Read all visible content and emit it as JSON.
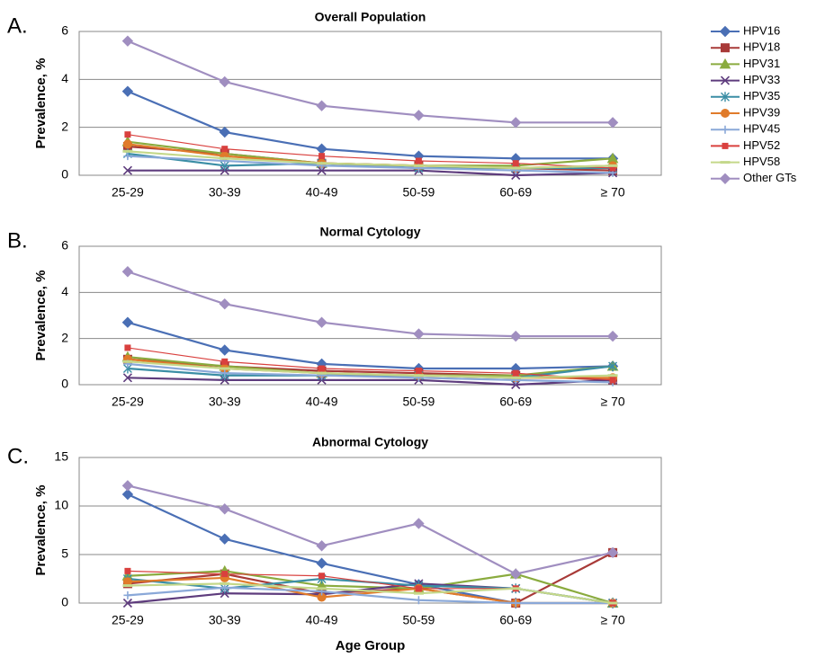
{
  "chart_data": [
    {
      "type": "line",
      "label": "A.",
      "title": "Overall Population",
      "ylabel": "Prevalence, %",
      "categories": [
        "25-29",
        "30-39",
        "40-49",
        "50-59",
        "60-69",
        "≥ 70"
      ],
      "ylim": [
        0,
        6
      ],
      "yticks": [
        0,
        2,
        4,
        6
      ],
      "grid": true,
      "legend": "right",
      "series": [
        {
          "name": "HPV16",
          "color": "#4a6fb5",
          "marker": "diamond",
          "values": [
            3.5,
            1.8,
            1.1,
            0.8,
            0.7,
            0.7
          ]
        },
        {
          "name": "HPV18",
          "color": "#a83a38",
          "marker": "square",
          "values": [
            1.2,
            0.9,
            0.5,
            0.4,
            0.3,
            0.2
          ]
        },
        {
          "name": "HPV31",
          "color": "#8aab3e",
          "marker": "triangle",
          "values": [
            1.4,
            0.9,
            0.5,
            0.4,
            0.4,
            0.7
          ]
        },
        {
          "name": "HPV33",
          "color": "#5e3c7d",
          "marker": "x",
          "values": [
            0.2,
            0.2,
            0.2,
            0.2,
            0,
            0.1
          ]
        },
        {
          "name": "HPV35",
          "color": "#3b8ea5",
          "marker": "star",
          "values": [
            0.9,
            0.4,
            0.5,
            0.3,
            0.3,
            0.3
          ]
        },
        {
          "name": "HPV39",
          "color": "#e07b2a",
          "marker": "circle",
          "values": [
            1.3,
            0.8,
            0.5,
            0.4,
            0.3,
            0.4
          ]
        },
        {
          "name": "HPV45",
          "color": "#8aa8d8",
          "marker": "plus",
          "values": [
            0.8,
            0.6,
            0.4,
            0.3,
            0.2,
            0.1
          ]
        },
        {
          "name": "HPV52",
          "color": "#d9403e",
          "marker": "smallsquare",
          "values": [
            1.7,
            1.1,
            0.8,
            0.6,
            0.5,
            0.3
          ]
        },
        {
          "name": "HPV58",
          "color": "#c4d88a",
          "marker": "dash",
          "values": [
            1.0,
            0.7,
            0.5,
            0.4,
            0.3,
            0.4
          ]
        },
        {
          "name": "Other GTs",
          "color": "#a08ec0",
          "marker": "diamond",
          "values": [
            5.6,
            3.9,
            2.9,
            2.5,
            2.2,
            2.2
          ]
        }
      ]
    },
    {
      "type": "line",
      "label": "B.",
      "title": "Normal Cytology",
      "ylabel": "Prevalence, %",
      "categories": [
        "25-29",
        "30-39",
        "40-49",
        "50-59",
        "60-69",
        "≥ 70"
      ],
      "ylim": [
        0,
        6
      ],
      "yticks": [
        0,
        2,
        4,
        6
      ],
      "grid": true,
      "series": [
        {
          "name": "HPV16",
          "color": "#4a6fb5",
          "marker": "diamond",
          "values": [
            2.7,
            1.5,
            0.9,
            0.7,
            0.7,
            0.8
          ]
        },
        {
          "name": "HPV18",
          "color": "#a83a38",
          "marker": "square",
          "values": [
            1.1,
            0.8,
            0.6,
            0.5,
            0.4,
            0.2
          ]
        },
        {
          "name": "HPV31",
          "color": "#8aab3e",
          "marker": "triangle",
          "values": [
            1.2,
            0.8,
            0.5,
            0.4,
            0.4,
            0.8
          ]
        },
        {
          "name": "HPV33",
          "color": "#5e3c7d",
          "marker": "x",
          "values": [
            0.3,
            0.2,
            0.2,
            0.2,
            0,
            0.2
          ]
        },
        {
          "name": "HPV35",
          "color": "#3b8ea5",
          "marker": "star",
          "values": [
            0.7,
            0.4,
            0.4,
            0.4,
            0.3,
            0.8
          ]
        },
        {
          "name": "HPV39",
          "color": "#e07b2a",
          "marker": "circle",
          "values": [
            1.1,
            0.7,
            0.5,
            0.4,
            0.3,
            0.3
          ]
        },
        {
          "name": "HPV45",
          "color": "#8aa8d8",
          "marker": "plus",
          "values": [
            0.9,
            0.5,
            0.4,
            0.3,
            0.2,
            0.1
          ]
        },
        {
          "name": "HPV52",
          "color": "#d9403e",
          "marker": "smallsquare",
          "values": [
            1.6,
            1.0,
            0.7,
            0.6,
            0.5,
            0.2
          ]
        },
        {
          "name": "HPV58",
          "color": "#c4d88a",
          "marker": "dash",
          "values": [
            1.0,
            0.7,
            0.5,
            0.4,
            0.3,
            0.4
          ]
        },
        {
          "name": "Other GTs",
          "color": "#a08ec0",
          "marker": "diamond",
          "values": [
            4.9,
            3.5,
            2.7,
            2.2,
            2.1,
            2.1
          ]
        }
      ]
    },
    {
      "type": "line",
      "label": "C.",
      "title": "Abnormal Cytology",
      "ylabel": "Prevalence, %",
      "xlabel": "Age Group",
      "categories": [
        "25-29",
        "30-39",
        "40-49",
        "50-59",
        "60-69",
        "≥ 70"
      ],
      "ylim": [
        0,
        15
      ],
      "yticks": [
        0,
        5,
        10,
        15
      ],
      "grid": true,
      "series": [
        {
          "name": "HPV16",
          "color": "#4a6fb5",
          "marker": "diamond",
          "values": [
            11.2,
            6.6,
            4.1,
            1.9,
            0,
            0
          ]
        },
        {
          "name": "HPV18",
          "color": "#a83a38",
          "marker": "square",
          "values": [
            2.0,
            3.0,
            1.0,
            1.5,
            0,
            5.2
          ]
        },
        {
          "name": "HPV31",
          "color": "#8aab3e",
          "marker": "triangle",
          "values": [
            2.8,
            3.3,
            1.8,
            1.5,
            3.0,
            0
          ]
        },
        {
          "name": "HPV33",
          "color": "#5e3c7d",
          "marker": "x",
          "values": [
            0,
            1.0,
            0.9,
            2.0,
            1.5,
            0
          ]
        },
        {
          "name": "HPV35",
          "color": "#3b8ea5",
          "marker": "star",
          "values": [
            2.5,
            1.5,
            2.5,
            1.8,
            1.5,
            0
          ]
        },
        {
          "name": "HPV39",
          "color": "#e07b2a",
          "marker": "circle",
          "values": [
            2.2,
            2.6,
            0.6,
            1.5,
            0,
            0
          ]
        },
        {
          "name": "HPV45",
          "color": "#8aa8d8",
          "marker": "plus",
          "values": [
            0.8,
            1.6,
            1.2,
            0.3,
            0,
            0
          ]
        },
        {
          "name": "HPV52",
          "color": "#d9403e",
          "marker": "smallsquare",
          "values": [
            3.3,
            3.0,
            2.8,
            1.5,
            1.5,
            0
          ]
        },
        {
          "name": "HPV58",
          "color": "#c4d88a",
          "marker": "dash",
          "values": [
            1.8,
            2.0,
            1.5,
            1.0,
            1.5,
            0
          ]
        },
        {
          "name": "Other GTs",
          "color": "#a08ec0",
          "marker": "diamond",
          "values": [
            12.1,
            9.7,
            5.9,
            8.2,
            3.0,
            5.2
          ]
        }
      ]
    }
  ]
}
